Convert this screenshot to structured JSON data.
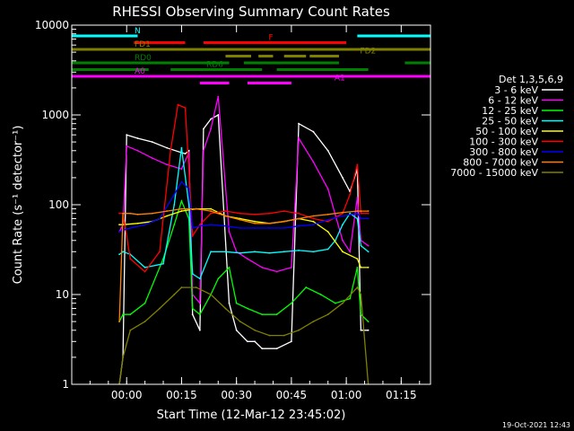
{
  "chart_data": {
    "type": "line",
    "title": "RHESSI Observing Summary Count Rates",
    "xlabel": "Start Time (12-Mar-12 23:45:02)",
    "ylabel": "Count Rate (s⁻¹ detector⁻¹)",
    "y_scale": "log",
    "ylim": [
      1,
      10000
    ],
    "x_units": "minutes after 12-Mar-12 23:45:02",
    "xlim": [
      0,
      98
    ],
    "x_ticks": [
      {
        "value": 15,
        "label": "00:00"
      },
      {
        "value": 30,
        "label": "00:15"
      },
      {
        "value": 45,
        "label": "00:30"
      },
      {
        "value": 60,
        "label": "00:45"
      },
      {
        "value": 75,
        "label": "01:00"
      },
      {
        "value": 90,
        "label": "01:15"
      }
    ],
    "y_ticks": [
      {
        "value": 1,
        "label": "1"
      },
      {
        "value": 10,
        "label": "10"
      },
      {
        "value": 100,
        "label": "100"
      },
      {
        "value": 1000,
        "label": "1000"
      },
      {
        "value": 10000,
        "label": "10000"
      }
    ],
    "legend_title": "Det 1,3,5,6,9",
    "legend_position": "right",
    "timestamp": "19-Oct-2021 12:43",
    "series": [
      {
        "name": "3 - 6 keV",
        "color": "#ffffff",
        "x": [
          13,
          14,
          15,
          18,
          22,
          26,
          30,
          31,
          32,
          33,
          35,
          36,
          38,
          40,
          43,
          45,
          48,
          50,
          52,
          56,
          60,
          62,
          66,
          70,
          74,
          76,
          78,
          79,
          81
        ],
        "y": [
          1,
          2,
          600,
          550,
          500,
          430,
          380,
          370,
          400,
          6,
          4,
          700,
          900,
          1000,
          8,
          4,
          3,
          3,
          2.5,
          2.5,
          3,
          800,
          650,
          400,
          200,
          140,
          250,
          4,
          4
        ]
      },
      {
        "name": "6 - 12 keV",
        "color": "#ff00ff",
        "x": [
          13,
          14,
          15,
          18,
          22,
          26,
          30,
          32,
          33,
          35,
          36,
          38,
          40,
          43,
          45,
          48,
          52,
          56,
          60,
          62,
          66,
          70,
          74,
          76,
          78,
          79,
          81
        ],
        "y": [
          50,
          60,
          450,
          400,
          330,
          280,
          250,
          380,
          10,
          8,
          400,
          700,
          1600,
          50,
          30,
          25,
          20,
          18,
          20,
          550,
          300,
          150,
          40,
          30,
          120,
          40,
          35
        ]
      },
      {
        "name": "12 - 25 keV",
        "color": "#00ff00",
        "x": [
          13,
          14,
          16,
          20,
          25,
          28,
          30,
          32,
          33,
          35,
          38,
          40,
          43,
          45,
          48,
          52,
          56,
          60,
          64,
          68,
          72,
          76,
          78,
          79,
          81
        ],
        "y": [
          5,
          6,
          6,
          8,
          25,
          60,
          110,
          70,
          7,
          6,
          10,
          15,
          20,
          8,
          7,
          6,
          6,
          8,
          12,
          10,
          8,
          9,
          20,
          6,
          5
        ]
      },
      {
        "name": "25 - 50 keV",
        "color": "#00ffff",
        "x": [
          13,
          14,
          16,
          20,
          25,
          28,
          30,
          32,
          33,
          35,
          38,
          42,
          46,
          50,
          54,
          58,
          62,
          66,
          70,
          72,
          74,
          76,
          78,
          79,
          81
        ],
        "y": [
          28,
          30,
          28,
          20,
          22,
          100,
          430,
          100,
          17,
          15,
          30,
          30,
          29,
          30,
          29,
          30,
          31,
          30,
          32,
          40,
          60,
          80,
          70,
          35,
          30
        ]
      },
      {
        "name": "50 - 100 keV",
        "color": "#ffff00",
        "x": [
          13,
          14,
          18,
          22,
          26,
          30,
          34,
          38,
          42,
          46,
          50,
          54,
          58,
          62,
          66,
          70,
          74,
          78,
          79,
          81
        ],
        "y": [
          60,
          60,
          62,
          65,
          75,
          85,
          90,
          90,
          75,
          70,
          65,
          62,
          65,
          70,
          65,
          50,
          30,
          25,
          20,
          20
        ]
      },
      {
        "name": "100 - 300 keV",
        "color": "#ff0000",
        "x": [
          13,
          14,
          16,
          20,
          24,
          27,
          29,
          31,
          32,
          33,
          35,
          38,
          42,
          46,
          50,
          54,
          58,
          62,
          66,
          70,
          74,
          76,
          78,
          79,
          81
        ],
        "y": [
          80,
          80,
          25,
          18,
          30,
          400,
          1300,
          1200,
          250,
          45,
          60,
          80,
          85,
          80,
          78,
          80,
          85,
          80,
          70,
          65,
          80,
          130,
          280,
          80,
          80
        ]
      },
      {
        "name": "300 - 800 keV",
        "color": "#0000ff",
        "x": [
          13,
          14,
          16,
          20,
          24,
          28,
          30,
          32,
          33,
          35,
          38,
          42,
          46,
          50,
          54,
          58,
          62,
          66,
          70,
          74,
          78,
          79,
          81
        ],
        "y": [
          50,
          52,
          55,
          60,
          70,
          130,
          180,
          150,
          55,
          58,
          60,
          58,
          55,
          55,
          55,
          55,
          58,
          60,
          68,
          75,
          80,
          70,
          70
        ]
      },
      {
        "name": "800 - 7000 keV",
        "color": "#ff8000",
        "x": [
          13,
          14,
          16,
          18,
          22,
          26,
          30,
          34,
          38,
          42,
          46,
          50,
          54,
          58,
          62,
          66,
          70,
          74,
          78,
          79,
          81
        ],
        "y": [
          5,
          80,
          80,
          78,
          80,
          85,
          90,
          90,
          85,
          75,
          68,
          62,
          62,
          65,
          70,
          75,
          78,
          82,
          85,
          85,
          85
        ]
      },
      {
        "name": "7000 - 15000 keV",
        "color": "#808000",
        "x": [
          13,
          14,
          16,
          20,
          24,
          28,
          30,
          34,
          38,
          42,
          46,
          50,
          54,
          58,
          62,
          66,
          70,
          74,
          78,
          79,
          81
        ],
        "y": [
          1,
          2,
          4,
          5,
          7,
          10,
          12,
          12,
          10,
          7,
          5,
          4,
          3.5,
          3.5,
          4,
          5,
          6,
          8,
          12,
          10,
          1
        ]
      }
    ],
    "state_bars": [
      {
        "label": "N",
        "color": "#00ffff",
        "intervals": [
          [
            0,
            18
          ],
          [
            78,
            98
          ]
        ]
      },
      {
        "label": "F",
        "color": "#ff0000",
        "intervals": [
          [
            17,
            31
          ],
          [
            36,
            75
          ]
        ]
      },
      {
        "label": "FD1",
        "color": "#808000",
        "intervals": [
          [
            0,
            98
          ]
        ]
      },
      {
        "label": "FD2",
        "color": "#808000",
        "intervals": [
          [
            42,
            49
          ],
          [
            51,
            55
          ],
          [
            58,
            64
          ],
          [
            65,
            73
          ]
        ]
      },
      {
        "label": "RD0",
        "color": "#008000",
        "intervals": [
          [
            0,
            43
          ],
          [
            47,
            73
          ],
          [
            91,
            98
          ]
        ]
      },
      {
        "label": "RD6",
        "color": "#008000",
        "intervals": [
          [
            0,
            21
          ],
          [
            27,
            52
          ],
          [
            56,
            81
          ]
        ]
      },
      {
        "label": "A0",
        "color": "#ff00ff",
        "intervals": [
          [
            0,
            98
          ]
        ]
      },
      {
        "label": "A1",
        "color": "#ff00ff",
        "intervals": [
          [
            35,
            43
          ],
          [
            48,
            60
          ]
        ]
      }
    ]
  }
}
